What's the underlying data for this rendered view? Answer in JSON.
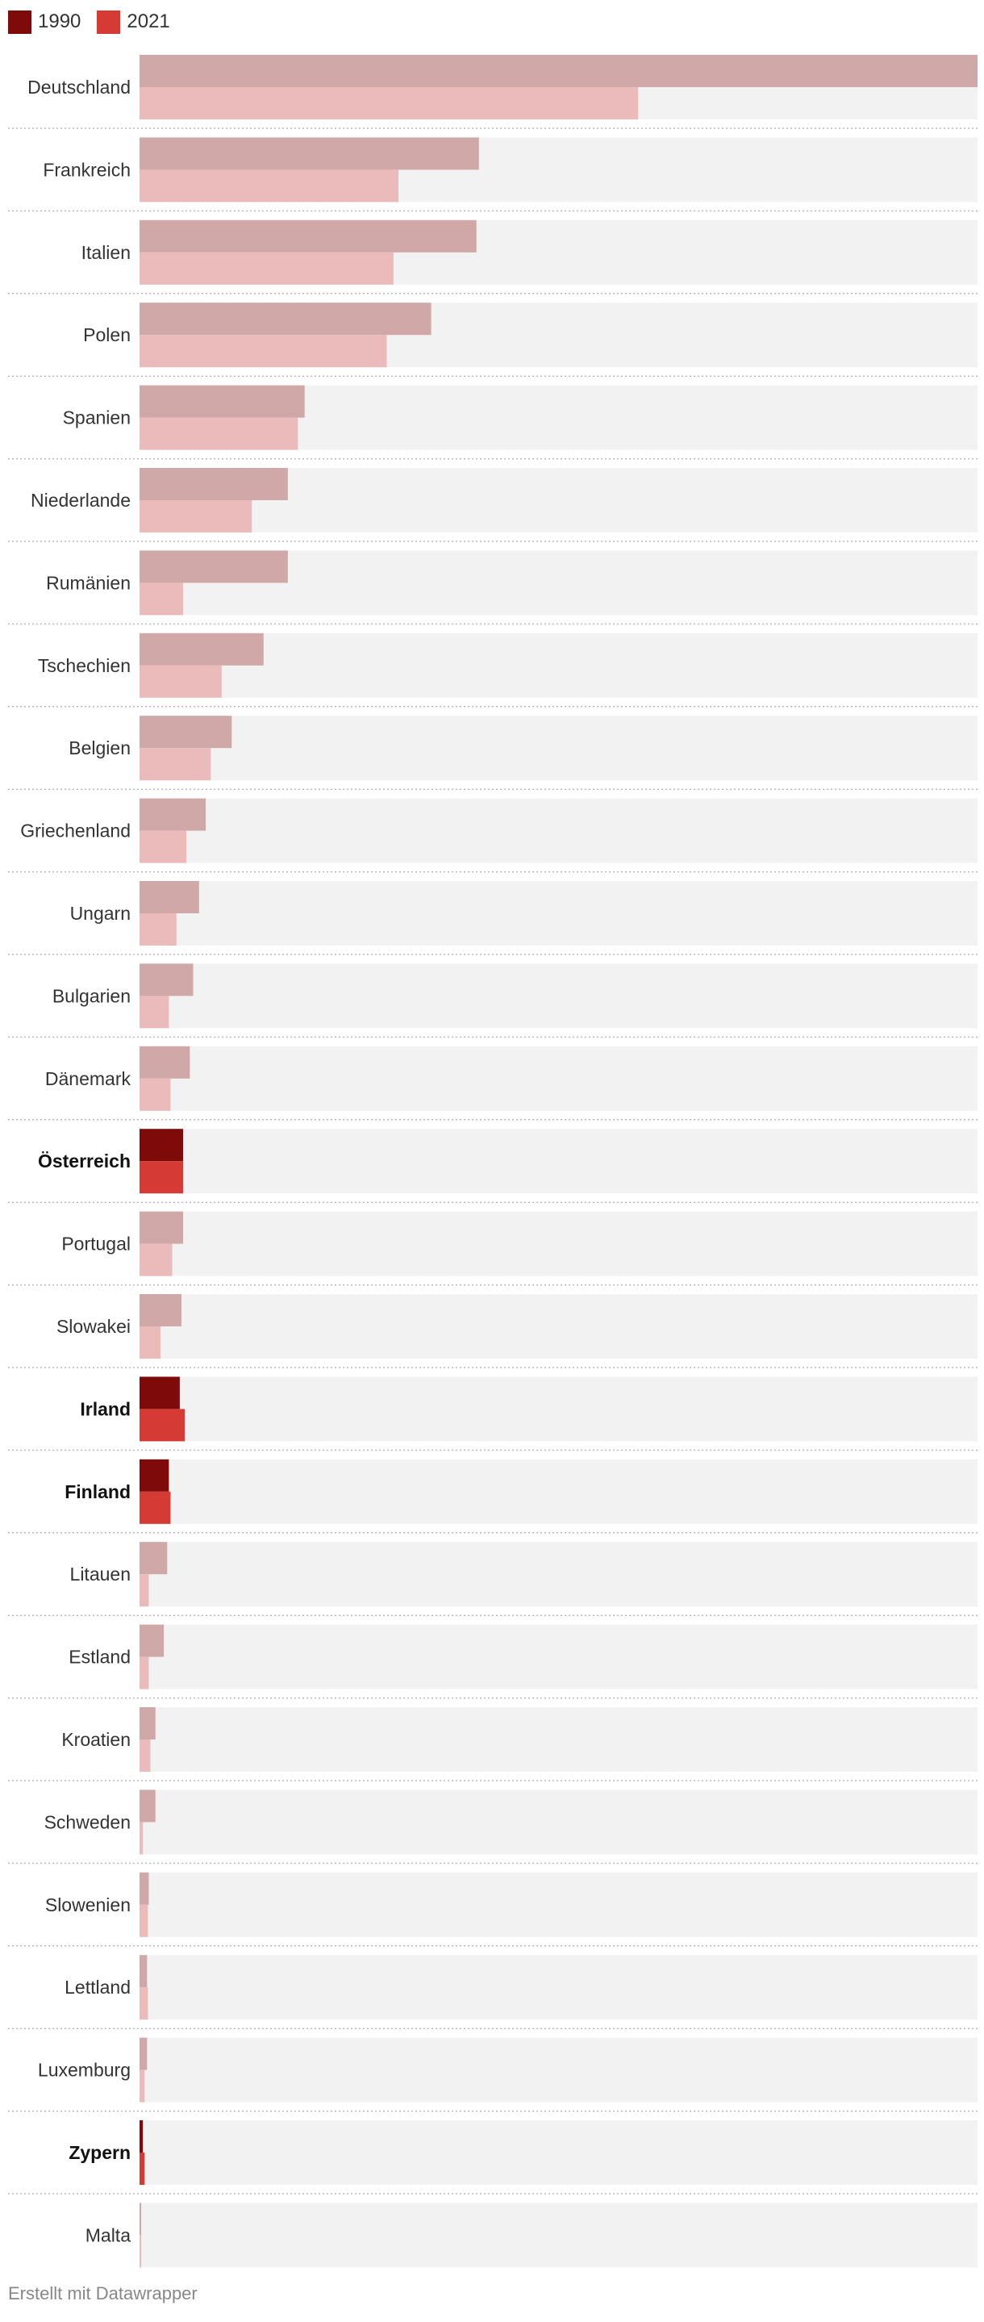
{
  "legend": {
    "items": [
      {
        "label": "1990",
        "color": "#7f0a0a"
      },
      {
        "label": "2021",
        "color": "#d63a34"
      }
    ]
  },
  "chart_data": {
    "type": "bar",
    "orientation": "horizontal",
    "title": "",
    "xlabel": "",
    "ylabel": "",
    "xlim": [
      0,
      100
    ],
    "grid": false,
    "legend_position": "top-left",
    "categories": [
      "Deutschland",
      "Frankreich",
      "Italien",
      "Polen",
      "Spanien",
      "Niederlande",
      "Rumänien",
      "Tschechien",
      "Belgien",
      "Griechenland",
      "Ungarn",
      "Bulgarien",
      "Dänemark",
      "Österreich",
      "Portugal",
      "Slowakei",
      "Irland",
      "Finland",
      "Litauen",
      "Estland",
      "Kroatien",
      "Schweden",
      "Slowenien",
      "Lettland",
      "Luxemburg",
      "Zypern",
      "Malta"
    ],
    "highlighted": [
      "Österreich",
      "Irland",
      "Finland",
      "Zypern"
    ],
    "series": [
      {
        "name": "1990",
        "values": [
          100,
          40.5,
          40.2,
          34.8,
          19.7,
          17.7,
          17.7,
          14.8,
          11.0,
          7.9,
          7.1,
          6.4,
          6.0,
          5.2,
          5.2,
          5.0,
          4.8,
          3.5,
          3.3,
          2.9,
          1.9,
          1.9,
          1.1,
          0.9,
          0.9,
          0.4,
          0.2
        ]
      },
      {
        "name": "2021",
        "values": [
          59.5,
          30.9,
          30.3,
          29.5,
          18.9,
          13.4,
          5.2,
          9.8,
          8.5,
          5.6,
          4.4,
          3.5,
          3.7,
          5.2,
          3.9,
          2.5,
          5.4,
          3.7,
          1.1,
          1.1,
          1.3,
          0.4,
          1.0,
          1.0,
          0.6,
          0.6,
          0.2
        ]
      }
    ],
    "colors": {
      "highlight_1990": "#7f0a0a",
      "highlight_2021": "#d63a34",
      "muted_1990": "#d1a8a8",
      "muted_2021": "#ebbaba",
      "track": "#f2f2f2",
      "separator": "#b8b8b8"
    }
  },
  "footer": {
    "credit": "Erstellt mit Datawrapper"
  }
}
